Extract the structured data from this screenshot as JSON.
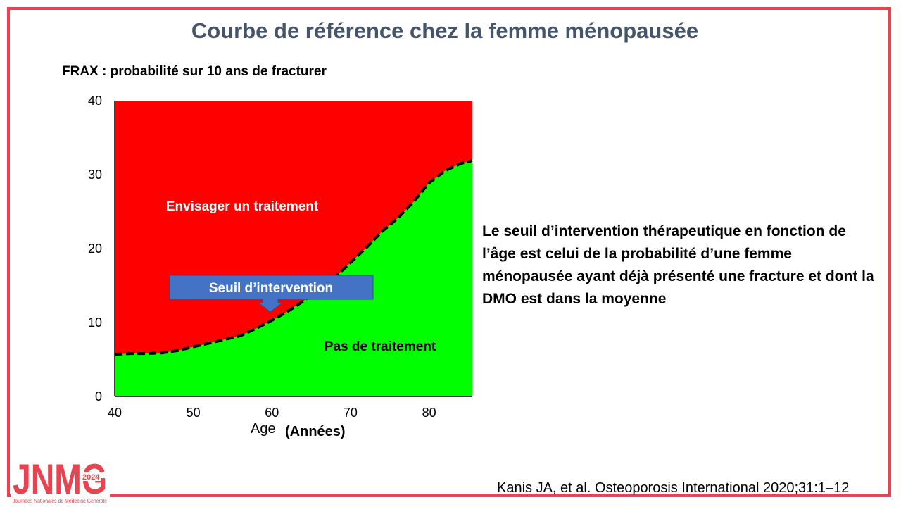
{
  "slide": {
    "title": "Courbe de référence chez la femme ménopausée",
    "subtitle": "FRAX : probabilité sur 10 ans de fracturer",
    "side_text": "Le seuil d’intervention thérapeutique en fonction de l’âge est celui de la probabilité d’une femme ménopausée ayant déjà présenté une fracture et dont la DMO est dans la moyenne",
    "citation": "Kanis JA, et al. Osteoporosis International 2020;31:1–12"
  },
  "logo": {
    "main": "JNMG",
    "year": "2024",
    "caption": "Journées Nationales de Médecine Générale",
    "color": "#e8434f"
  },
  "chart_data": {
    "type": "area",
    "xlabel": "Age",
    "xlabel_unit": "(Années)",
    "ylabel": "",
    "xlim": [
      40,
      85.5
    ],
    "ylim": [
      0,
      40
    ],
    "xticks": [
      40,
      50,
      60,
      70,
      80
    ],
    "yticks": [
      0,
      10,
      20,
      30,
      40
    ],
    "grid": false,
    "series": [
      {
        "x": [
          40,
          42,
          44,
          46,
          48,
          50,
          52,
          54,
          56,
          58,
          60,
          62,
          64,
          66,
          68,
          70,
          72,
          74,
          76,
          78,
          80,
          82,
          84,
          85.5
        ],
        "values": [
          5.7,
          5.8,
          5.8,
          5.9,
          6.2,
          6.7,
          7.2,
          7.7,
          8.2,
          9.2,
          10.3,
          11.5,
          12.9,
          14.6,
          16.1,
          18.1,
          20.1,
          22.3,
          24.1,
          26.3,
          28.9,
          30.5,
          31.5,
          31.9
        ]
      }
    ],
    "annotations": {
      "upper": "Envisager un traitement",
      "lower": "Pas de traitement",
      "threshold": "Seuil d’intervention"
    },
    "colors": {
      "upper_fill": "#ff0000",
      "lower_fill": "#00ff00",
      "threshold_box": "#4472c4",
      "threshold_line": "#000000"
    }
  }
}
